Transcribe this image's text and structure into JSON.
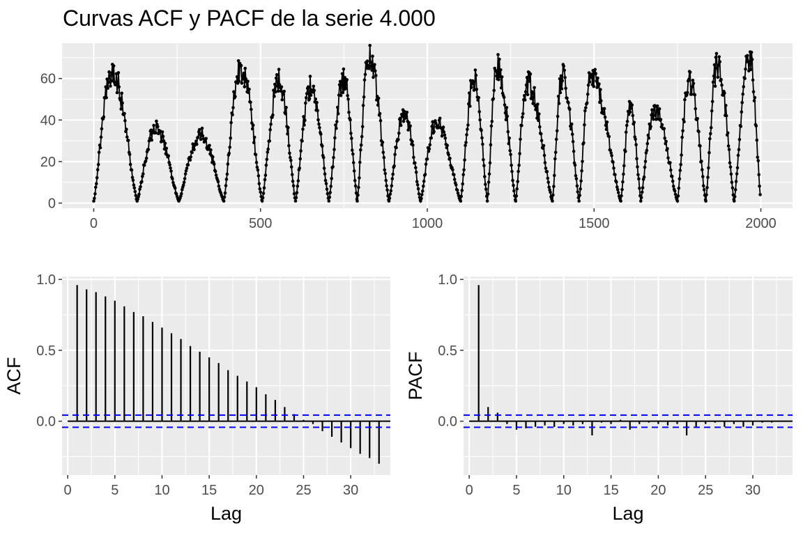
{
  "title": "Curvas ACF y PACF de la serie 4.000",
  "colors": {
    "panel_bg": "#EBEBEB",
    "grid": "#FFFFFF",
    "series": "#000000",
    "ci": "#0000FF",
    "axis_text": "#4D4D4D"
  },
  "chart_data": [
    {
      "type": "line",
      "title": "Curvas ACF y PACF de la serie 4.000",
      "xlabel": "",
      "ylabel": "",
      "xlim": [
        -95,
        2095
      ],
      "ylim": [
        -2.5,
        77
      ],
      "x_ticks": [
        0,
        500,
        1000,
        1500,
        2000
      ],
      "y_ticks": [
        0,
        20,
        40,
        60
      ],
      "x_tick_labels": [
        "0",
        "500",
        "1000",
        "1500",
        "2000"
      ],
      "y_tick_labels": [
        "0",
        "20",
        "40",
        "60"
      ],
      "grid": true,
      "markers": "points",
      "cycles": [
        {
          "start": 0,
          "end": 130,
          "peak": 62,
          "peak_x": 55
        },
        {
          "start": 130,
          "end": 255,
          "peak": 35,
          "peak_x": 185
        },
        {
          "start": 255,
          "end": 390,
          "peak": 32,
          "peak_x": 320
        },
        {
          "start": 390,
          "end": 505,
          "peak": 64,
          "peak_x": 440
        },
        {
          "start": 505,
          "end": 605,
          "peak": 58,
          "peak_x": 555
        },
        {
          "start": 605,
          "end": 705,
          "peak": 55,
          "peak_x": 650
        },
        {
          "start": 705,
          "end": 790,
          "peak": 59,
          "peak_x": 750
        },
        {
          "start": 790,
          "end": 885,
          "peak": 68,
          "peak_x": 825
        },
        {
          "start": 885,
          "end": 980,
          "peak": 42,
          "peak_x": 930
        },
        {
          "start": 980,
          "end": 1100,
          "peak": 38,
          "peak_x": 1025
        },
        {
          "start": 1100,
          "end": 1180,
          "peak": 58,
          "peak_x": 1140
        },
        {
          "start": 1180,
          "end": 1265,
          "peak": 65,
          "peak_x": 1210
        },
        {
          "start": 1265,
          "end": 1375,
          "peak": 57,
          "peak_x": 1300
        },
        {
          "start": 1375,
          "end": 1455,
          "peak": 60,
          "peak_x": 1405
        },
        {
          "start": 1455,
          "end": 1580,
          "peak": 60,
          "peak_x": 1490
        },
        {
          "start": 1580,
          "end": 1640,
          "peak": 45,
          "peak_x": 1610
        },
        {
          "start": 1640,
          "end": 1750,
          "peak": 44,
          "peak_x": 1680
        },
        {
          "start": 1750,
          "end": 1835,
          "peak": 58,
          "peak_x": 1785
        },
        {
          "start": 1835,
          "end": 1920,
          "peak": 66,
          "peak_x": 1870
        },
        {
          "start": 1920,
          "end": 2000,
          "peak": 70,
          "peak_x": 1965
        }
      ]
    },
    {
      "type": "bar",
      "xlabel": "Lag",
      "ylabel": "ACF",
      "xlim": [
        -0.6,
        34.2
      ],
      "ylim": [
        -0.38,
        1.02
      ],
      "x_ticks": [
        0,
        5,
        10,
        15,
        20,
        25,
        30
      ],
      "y_ticks": [
        0.0,
        0.5,
        1.0
      ],
      "x_tick_labels": [
        "0",
        "5",
        "10",
        "15",
        "20",
        "25",
        "30"
      ],
      "y_tick_labels": [
        "0.0",
        "0.5",
        "1.0"
      ],
      "lags": [
        1,
        2,
        3,
        4,
        5,
        6,
        7,
        8,
        9,
        10,
        11,
        12,
        13,
        14,
        15,
        16,
        17,
        18,
        19,
        20,
        21,
        22,
        23,
        24,
        25,
        26,
        27,
        28,
        29,
        30,
        31,
        32,
        33
      ],
      "values": [
        0.96,
        0.93,
        0.91,
        0.88,
        0.85,
        0.81,
        0.77,
        0.74,
        0.7,
        0.66,
        0.62,
        0.58,
        0.53,
        0.49,
        0.45,
        0.41,
        0.36,
        0.32,
        0.28,
        0.24,
        0.19,
        0.15,
        0.1,
        0.05,
        0.01,
        -0.02,
        -0.07,
        -0.11,
        -0.15,
        -0.19,
        -0.23,
        -0.26,
        -0.3
      ],
      "ci": 0.043,
      "grid": true
    },
    {
      "type": "bar",
      "xlabel": "Lag",
      "ylabel": "PACF",
      "xlim": [
        -0.6,
        34.2
      ],
      "ylim": [
        -0.38,
        1.02
      ],
      "x_ticks": [
        0,
        5,
        10,
        15,
        20,
        25,
        30
      ],
      "y_ticks": [
        0.0,
        0.5,
        1.0
      ],
      "x_tick_labels": [
        "0",
        "5",
        "10",
        "15",
        "20",
        "25",
        "30"
      ],
      "y_tick_labels": [
        "0.0",
        "0.5",
        "1.0"
      ],
      "lags": [
        1,
        2,
        3,
        4,
        5,
        6,
        7,
        8,
        9,
        10,
        11,
        12,
        13,
        14,
        15,
        16,
        17,
        18,
        19,
        20,
        21,
        22,
        23,
        24,
        25,
        26,
        27,
        28,
        29,
        30,
        31,
        32,
        33
      ],
      "values": [
        0.96,
        0.1,
        0.06,
        -0.02,
        -0.06,
        -0.05,
        -0.04,
        -0.03,
        -0.04,
        -0.02,
        -0.03,
        -0.02,
        -0.1,
        -0.01,
        -0.02,
        0.01,
        -0.06,
        -0.02,
        -0.01,
        -0.02,
        -0.03,
        -0.02,
        -0.1,
        -0.04,
        -0.02,
        -0.01,
        -0.04,
        -0.02,
        -0.04,
        -0.03,
        -0.01,
        -0.01,
        0.0
      ],
      "ci": 0.043,
      "grid": true
    }
  ]
}
